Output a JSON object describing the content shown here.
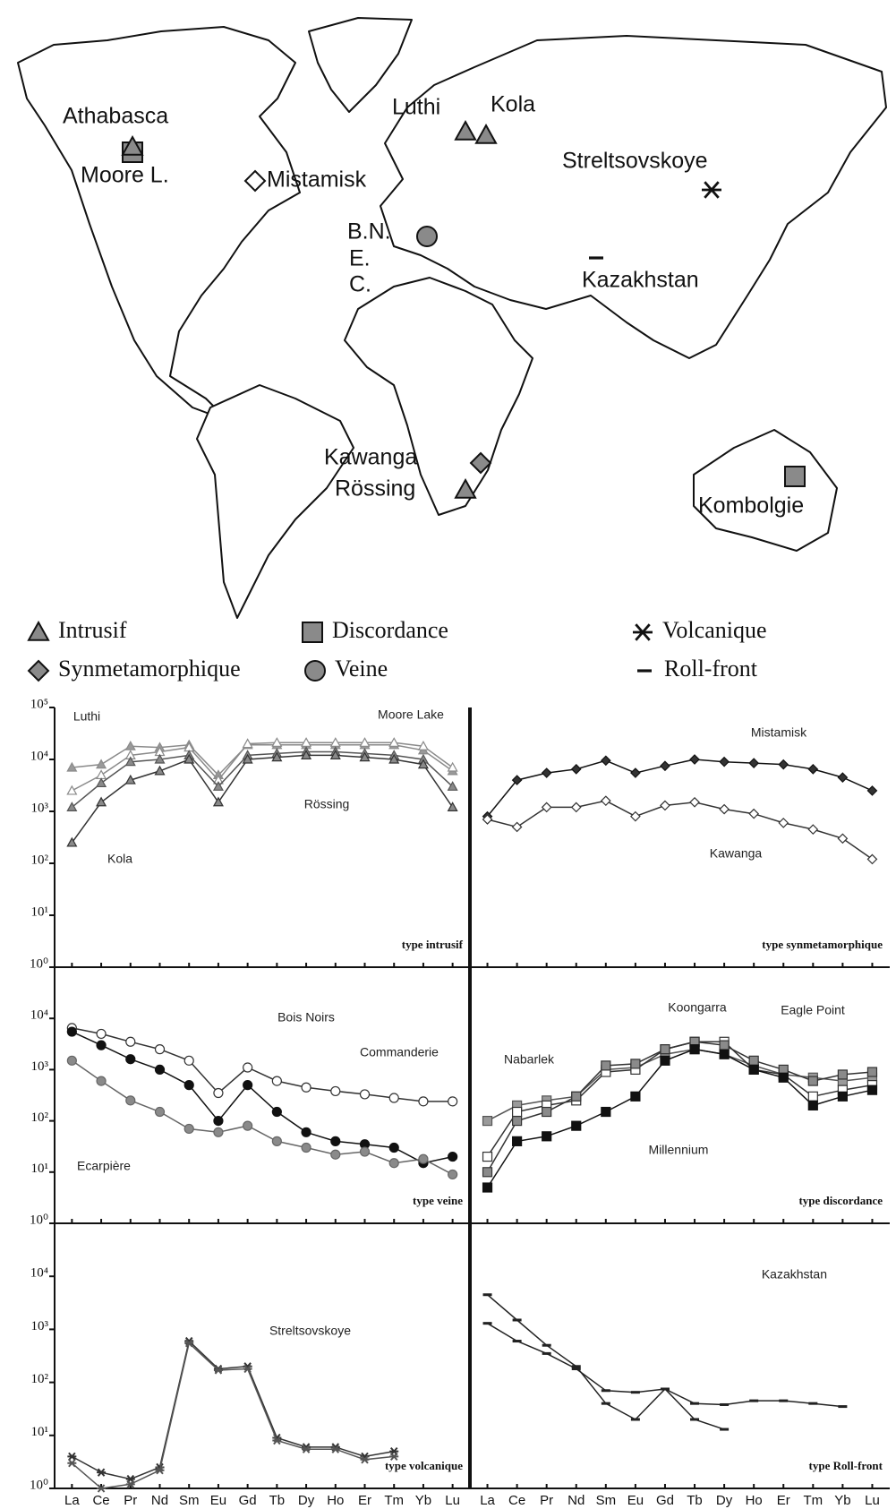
{
  "map": {
    "sites": [
      {
        "label": "Athabasca",
        "symbol": "square",
        "fill": "#8a8a8a"
      },
      {
        "label": "Moore L.",
        "symbol": "triangle",
        "fill": "#8a8a8a"
      },
      {
        "label": "Mistamisk",
        "symbol": "diamond",
        "fill": "#ffffff"
      },
      {
        "label": "Luthi",
        "symbol": "triangle",
        "fill": "#8a8a8a"
      },
      {
        "label": "Kola",
        "symbol": "triangle",
        "fill": "#8a8a8a"
      },
      {
        "label": "Streltsovskoye",
        "symbol": "star",
        "fill": "#111111"
      },
      {
        "label": "B.N.",
        "symbol": "circle",
        "fill": "#8a8a8a"
      },
      {
        "label": "E.",
        "symbol": "none",
        "fill": "#8a8a8a"
      },
      {
        "label": "C.",
        "symbol": "none",
        "fill": "#8a8a8a"
      },
      {
        "label": "Kazakhstan",
        "symbol": "dash",
        "fill": "#111111"
      },
      {
        "label": "Kawanga",
        "symbol": "diamond",
        "fill": "#8a8a8a"
      },
      {
        "label": "Rössing",
        "symbol": "triangle",
        "fill": "#8a8a8a"
      },
      {
        "label": "Kombolgie",
        "symbol": "square",
        "fill": "#8a8a8a"
      }
    ],
    "legend": [
      {
        "label": "Intrusif",
        "symbol": "triangle",
        "fill": "#8a8a8a"
      },
      {
        "label": "Discordance",
        "symbol": "square",
        "fill": "#8a8a8a"
      },
      {
        "label": "Volcanique",
        "symbol": "star",
        "fill": "#111111"
      },
      {
        "label": "Synmetamorphique",
        "symbol": "diamond",
        "fill": "#8a8a8a"
      },
      {
        "label": "Veine",
        "symbol": "circle",
        "fill": "#8a8a8a"
      },
      {
        "label": "Roll-front",
        "symbol": "dash",
        "fill": "#111111"
      }
    ]
  },
  "chart_data": [
    {
      "type": "line",
      "title": "type intrusif",
      "log_scale": true,
      "ylim": [
        1,
        100000
      ],
      "yticks": [
        {
          "value": 1,
          "label": "10⁰"
        },
        {
          "value": 10,
          "label": "10¹"
        },
        {
          "value": 100,
          "label": "10²"
        },
        {
          "value": 1000,
          "label": "10³"
        },
        {
          "value": 10000,
          "label": "10⁴"
        },
        {
          "value": 100000,
          "label": "10⁵"
        }
      ],
      "series": [
        {
          "name": "Luthi",
          "color": "#8a8a8a",
          "marker": "triangle",
          "marker_fill": "#9a9a9a",
          "values": [
            7000,
            8000,
            18000,
            17000,
            19000,
            5000,
            19000,
            19000,
            19000,
            19000,
            19000,
            19000,
            15000,
            6000
          ]
        },
        {
          "name": "Moore Lake",
          "color": "#8a8a8a",
          "marker": "triangle",
          "marker_fill": "#ffffff",
          "values": [
            2500,
            5000,
            12000,
            14000,
            17000,
            4000,
            20000,
            21000,
            21000,
            21000,
            21000,
            21000,
            18000,
            7000
          ]
        },
        {
          "name": "Rössing",
          "color": "#555555",
          "marker": "triangle",
          "marker_fill": "#8a8a8a",
          "values": [
            1200,
            3500,
            9000,
            10000,
            12000,
            3000,
            12000,
            13000,
            14000,
            14000,
            13000,
            12000,
            10000,
            3000
          ]
        },
        {
          "name": "Kola",
          "color": "#333333",
          "marker": "triangle",
          "marker_fill": "#8a8a8a",
          "values": [
            250,
            1500,
            4000,
            6000,
            10000,
            1500,
            10000,
            11000,
            12000,
            12000,
            11000,
            10000,
            8000,
            1200
          ]
        }
      ]
    },
    {
      "type": "line",
      "title": "type synmetamorphique",
      "log_scale": true,
      "ylim": [
        1,
        100000
      ],
      "series": [
        {
          "name": "Mistamisk",
          "color": "#111111",
          "marker": "diamond",
          "marker_fill": "#333333",
          "values": [
            800,
            4000,
            5500,
            6500,
            9500,
            5500,
            7500,
            10000,
            9000,
            8500,
            8000,
            6500,
            4500,
            2500
          ]
        },
        {
          "name": "Kawanga",
          "color": "#333333",
          "marker": "diamond",
          "marker_fill": "#ffffff",
          "values": [
            700,
            500,
            1200,
            1200,
            1600,
            800,
            1300,
            1500,
            1100,
            900,
            600,
            450,
            300,
            120
          ]
        }
      ]
    },
    {
      "type": "line",
      "title": "type veine",
      "log_scale": true,
      "ylim": [
        1,
        100000
      ],
      "yticks": [
        {
          "value": 1,
          "label": "10⁰"
        },
        {
          "value": 10,
          "label": "10¹"
        },
        {
          "value": 100,
          "label": "10²"
        },
        {
          "value": 1000,
          "label": "10³"
        },
        {
          "value": 10000,
          "label": "10⁴"
        }
      ],
      "series": [
        {
          "name": "Bois Noirs",
          "color": "#333333",
          "marker": "circle",
          "marker_fill": "#ffffff",
          "values": [
            6500,
            5000,
            3500,
            2500,
            1500,
            350,
            1100,
            600,
            450,
            380,
            330,
            280,
            240,
            240
          ]
        },
        {
          "name": "Commanderie",
          "color": "#111111",
          "marker": "circle",
          "marker_fill": "#111111",
          "values": [
            5500,
            3000,
            1600,
            1000,
            500,
            100,
            500,
            150,
            60,
            40,
            35,
            30,
            15,
            20
          ]
        },
        {
          "name": "Ecarpière",
          "color": "#666666",
          "marker": "circle",
          "marker_fill": "#8a8a8a",
          "values": [
            1500,
            600,
            250,
            150,
            70,
            60,
            80,
            40,
            30,
            22,
            25,
            15,
            18,
            9
          ]
        }
      ]
    },
    {
      "type": "line",
      "title": "type discordance",
      "log_scale": true,
      "ylim": [
        1,
        100000
      ],
      "series": [
        {
          "name": "Nabarlek",
          "color": "#555555",
          "marker": "square",
          "marker_fill": "#9a9a9a",
          "values": [
            100,
            200,
            250,
            300,
            1000,
            1100,
            2000,
            2500,
            2000,
            1200,
            800,
            700,
            600,
            700
          ]
        },
        {
          "name": "Koongarra",
          "color": "#333333",
          "marker": "square",
          "marker_fill": "#ffffff",
          "values": [
            20,
            150,
            200,
            250,
            900,
            1000,
            2500,
            3500,
            3500,
            1000,
            800,
            300,
            400,
            500
          ]
        },
        {
          "name": "Eagle Point",
          "color": "#333333",
          "marker": "square",
          "marker_fill": "#8a8a8a",
          "values": [
            10,
            100,
            150,
            300,
            1200,
            1300,
            2500,
            3500,
            3000,
            1500,
            1000,
            600,
            800,
            900
          ]
        },
        {
          "name": "Millennium",
          "color": "#111111",
          "marker": "square",
          "marker_fill": "#111111",
          "values": [
            5,
            40,
            50,
            80,
            150,
            300,
            1500,
            2500,
            2000,
            1000,
            700,
            200,
            300,
            400
          ]
        }
      ]
    },
    {
      "type": "line",
      "title": "type volcanique",
      "log_scale": true,
      "ylim": [
        1,
        100000
      ],
      "annotations": [
        "Streltsovskoye"
      ],
      "categories": [
        "La",
        "Ce",
        "Pr",
        "Nd",
        "Sm",
        "Eu",
        "Gd",
        "Tb",
        "Dy",
        "Ho",
        "Er",
        "Tm",
        "Yb",
        "Lu"
      ],
      "yticks": [
        {
          "value": 1,
          "label": "10⁰"
        },
        {
          "value": 10,
          "label": "10¹"
        },
        {
          "value": 100,
          "label": "10²"
        },
        {
          "value": 1000,
          "label": "10³"
        },
        {
          "value": 10000,
          "label": "10⁴"
        }
      ],
      "series": [
        {
          "color": "#333333",
          "marker": "star",
          "marker_fill": "#333333",
          "values": [
            4,
            2,
            1.5,
            2.5,
            600,
            180,
            200,
            9,
            6,
            6,
            4,
            5,
            null,
            null
          ]
        },
        {
          "color": "#555555",
          "marker": "star",
          "marker_fill": "#555555",
          "values": [
            3,
            1,
            1.2,
            2.2,
            550,
            170,
            180,
            8,
            5.5,
            5.5,
            3.5,
            4,
            null,
            null
          ]
        }
      ]
    },
    {
      "type": "line",
      "title": "type Roll-front",
      "log_scale": true,
      "ylim": [
        1,
        100000
      ],
      "annotations": [
        "Kazakhstan"
      ],
      "categories": [
        "La",
        "Ce",
        "Pr",
        "Nd",
        "Sm",
        "Eu",
        "Gd",
        "Tb",
        "Dy",
        "Ho",
        "Er",
        "Tm",
        "Yb",
        "Lu"
      ],
      "series": [
        {
          "color": "#222222",
          "marker": "dash",
          "marker_fill": "#222222",
          "values": [
            4500,
            1500,
            500,
            200,
            40,
            20,
            75,
            20,
            13,
            null,
            null,
            null,
            null,
            null
          ]
        },
        {
          "color": "#222222",
          "marker": "dash",
          "marker_fill": "#222222",
          "values": [
            1300,
            600,
            350,
            180,
            70,
            65,
            75,
            40,
            38,
            45,
            45,
            40,
            35,
            null
          ]
        }
      ]
    }
  ]
}
